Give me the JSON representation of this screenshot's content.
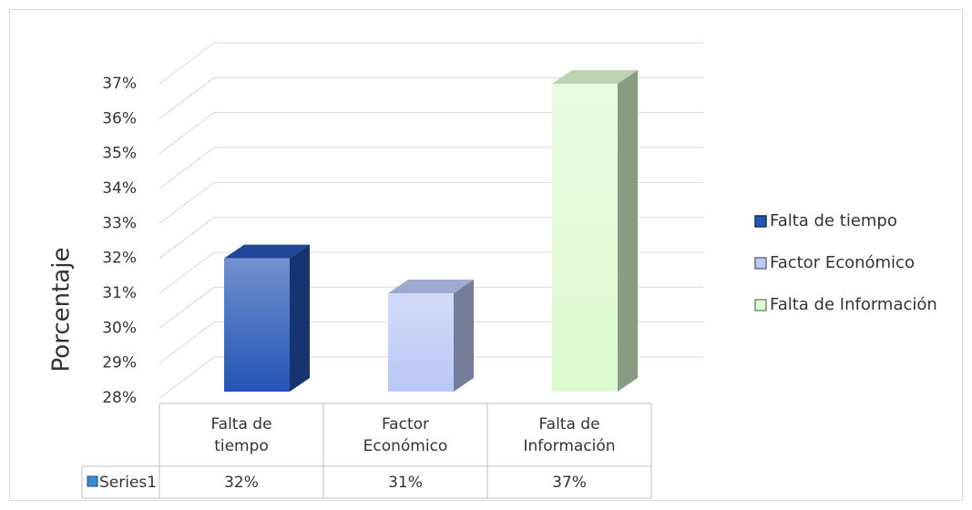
{
  "chart_data": {
    "type": "bar3d",
    "ylabel": "Porcentaje",
    "categories": [
      "Falta de tiempo",
      "Factor Económico",
      "Falta de Información"
    ],
    "colors": [
      "#2455b5",
      "#b9c8f5",
      "#dcfbd0"
    ],
    "series": [
      {
        "name": "Series1",
        "color": "#3a8ad0",
        "values": [
          32,
          31,
          37
        ],
        "value_labels": [
          "32%",
          "31%",
          "37%"
        ]
      }
    ],
    "ylim": [
      28,
      37
    ],
    "yticks": [
      {
        "value": 28,
        "label": "28%"
      },
      {
        "value": 29,
        "label": "29%"
      },
      {
        "value": 30,
        "label": "30%"
      },
      {
        "value": 31,
        "label": "31%"
      },
      {
        "value": 32,
        "label": "32%"
      },
      {
        "value": 33,
        "label": "33%"
      },
      {
        "value": 34,
        "label": "34%"
      },
      {
        "value": 35,
        "label": "35%"
      },
      {
        "value": 36,
        "label": "36%"
      },
      {
        "value": 37,
        "label": "37%"
      }
    ],
    "grid": true,
    "legend": "right"
  }
}
